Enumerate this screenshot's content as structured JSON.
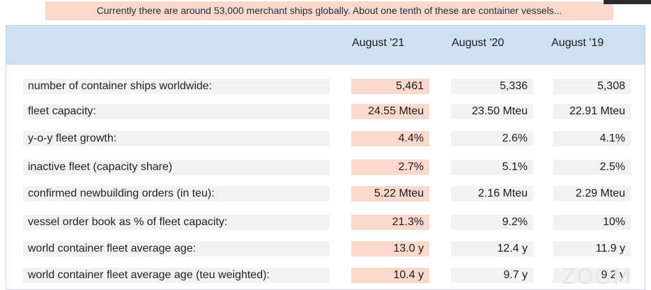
{
  "banner": {
    "text": "Currently there are around 53,000 merchant ships globally. About one tenth of these are container vessels..."
  },
  "table": {
    "columns": [
      "August '21",
      "August '20",
      "August '19"
    ],
    "rows": [
      {
        "label": "number of container ships worldwide:",
        "values": [
          "5,461",
          "5,336",
          "5,308"
        ]
      },
      {
        "label": "fleet capacity:",
        "values": [
          "24.55 Mteu",
          "23.50 Mteu",
          "22.91 Mteu"
        ]
      },
      {
        "label": "y-o-y fleet growth:",
        "values": [
          "4.4%",
          "2.6%",
          "4.1%"
        ]
      },
      {
        "label": "inactive fleet (capacity share)",
        "values": [
          "2.7%",
          "5.1%",
          "2.5%"
        ]
      },
      {
        "label": "confirmed newbuilding orders (in teu):",
        "values": [
          "5.22 Mteu",
          "2.16 Mteu",
          "2.29 Mteu"
        ]
      },
      {
        "label": "vessel order book as % of fleet capacity:",
        "values": [
          "21.3%",
          "9.2%",
          "10%"
        ]
      },
      {
        "label": "world container fleet average age:",
        "values": [
          "13.0 y",
          "12.4 y",
          "11.9 y"
        ]
      },
      {
        "label": "world container fleet average age (teu weighted):",
        "values": [
          "10.4 y",
          "9.7 y",
          "9.2 y"
        ]
      }
    ]
  },
  "colors": {
    "highlight": "#fad9cc",
    "header_band": "#cfe0f3",
    "cell_bg": "#f2f2f2"
  }
}
